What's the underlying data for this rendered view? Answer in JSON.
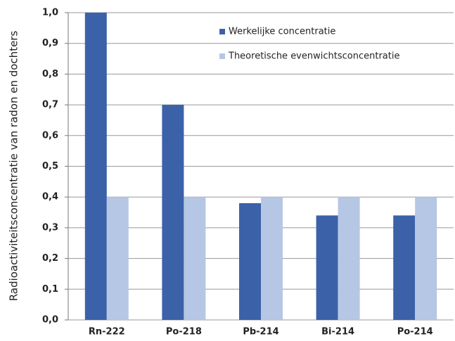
{
  "chart_data": {
    "type": "bar",
    "y_label": "Radioactiviteitsconcentratie van radon en dochters",
    "categories": [
      "Rn-222",
      "Po-218",
      "Pb-214",
      "Bi-214",
      "Po-214"
    ],
    "series": [
      {
        "name": "Werkelijke concentratie",
        "color": "#3b62a8",
        "values": [
          1.0,
          0.7,
          0.38,
          0.34,
          0.34
        ]
      },
      {
        "name": "Theoretische evenwichtsconcentratie",
        "color": "#b5c7e4",
        "values": [
          0.4,
          0.4,
          0.4,
          0.4,
          0.4
        ]
      }
    ],
    "ylim": [
      0,
      1
    ],
    "yticks": [
      {
        "value": 0,
        "label": "0,0"
      },
      {
        "value": 0.1,
        "label": "0,1"
      },
      {
        "value": 0.2,
        "label": "0,2"
      },
      {
        "value": 0.3,
        "label": "0,3"
      },
      {
        "value": 0.4,
        "label": "0,4"
      },
      {
        "value": 0.5,
        "label": "0,5"
      },
      {
        "value": 0.6,
        "label": "0,6"
      },
      {
        "value": 0.7,
        "label": "0,7"
      },
      {
        "value": 0.8,
        "label": "0,8"
      },
      {
        "value": 0.9,
        "label": "0,9"
      },
      {
        "value": 1,
        "label": "1,0"
      }
    ],
    "grid": true,
    "legend": "upper right"
  }
}
